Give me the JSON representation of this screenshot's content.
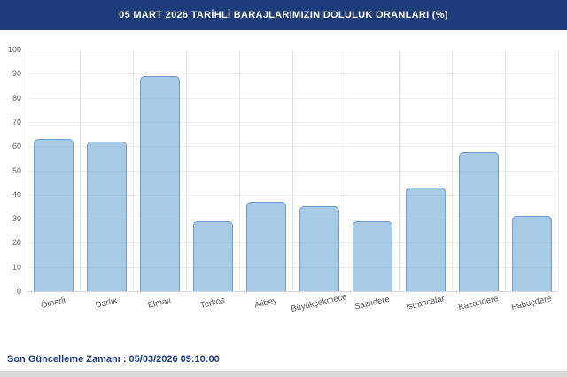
{
  "header": {
    "title": "05 MART 2026 TARİHLİ BARAJLARIMIZIN DOLULUK ORANLARI (%)"
  },
  "footer": {
    "label": "Son Güncelleme Zamanı :",
    "value": "05/03/2026 09:10:00"
  },
  "colors": {
    "header_bg": "#1e3b7a",
    "bar_fill": "rgba(112,166,214,0.6)",
    "bar_border": "#6e9bc8",
    "footer_text": "#1e3b7a",
    "grid": "#efefef"
  },
  "chart_data": {
    "type": "bar",
    "title": "05 MART 2026 TARİHLİ BARAJLARIMIZIN DOLULUK ORANLARI (%)",
    "categories": [
      "Ömerli",
      "Darlık",
      "Elmalı",
      "Terkos",
      "Alibey",
      "Büyükçekmece",
      "Sazlıdere",
      "Istrancalar",
      "Kazandere",
      "Pabuçdere"
    ],
    "values": [
      63,
      62,
      89,
      29,
      37,
      35,
      29,
      43,
      57.5,
      31
    ],
    "xlabel": "",
    "ylabel": "",
    "ylim": [
      0,
      100
    ],
    "yticks": [
      0,
      10,
      20,
      30,
      40,
      50,
      60,
      70,
      80,
      90,
      100
    ],
    "grid": true,
    "legend": false
  }
}
